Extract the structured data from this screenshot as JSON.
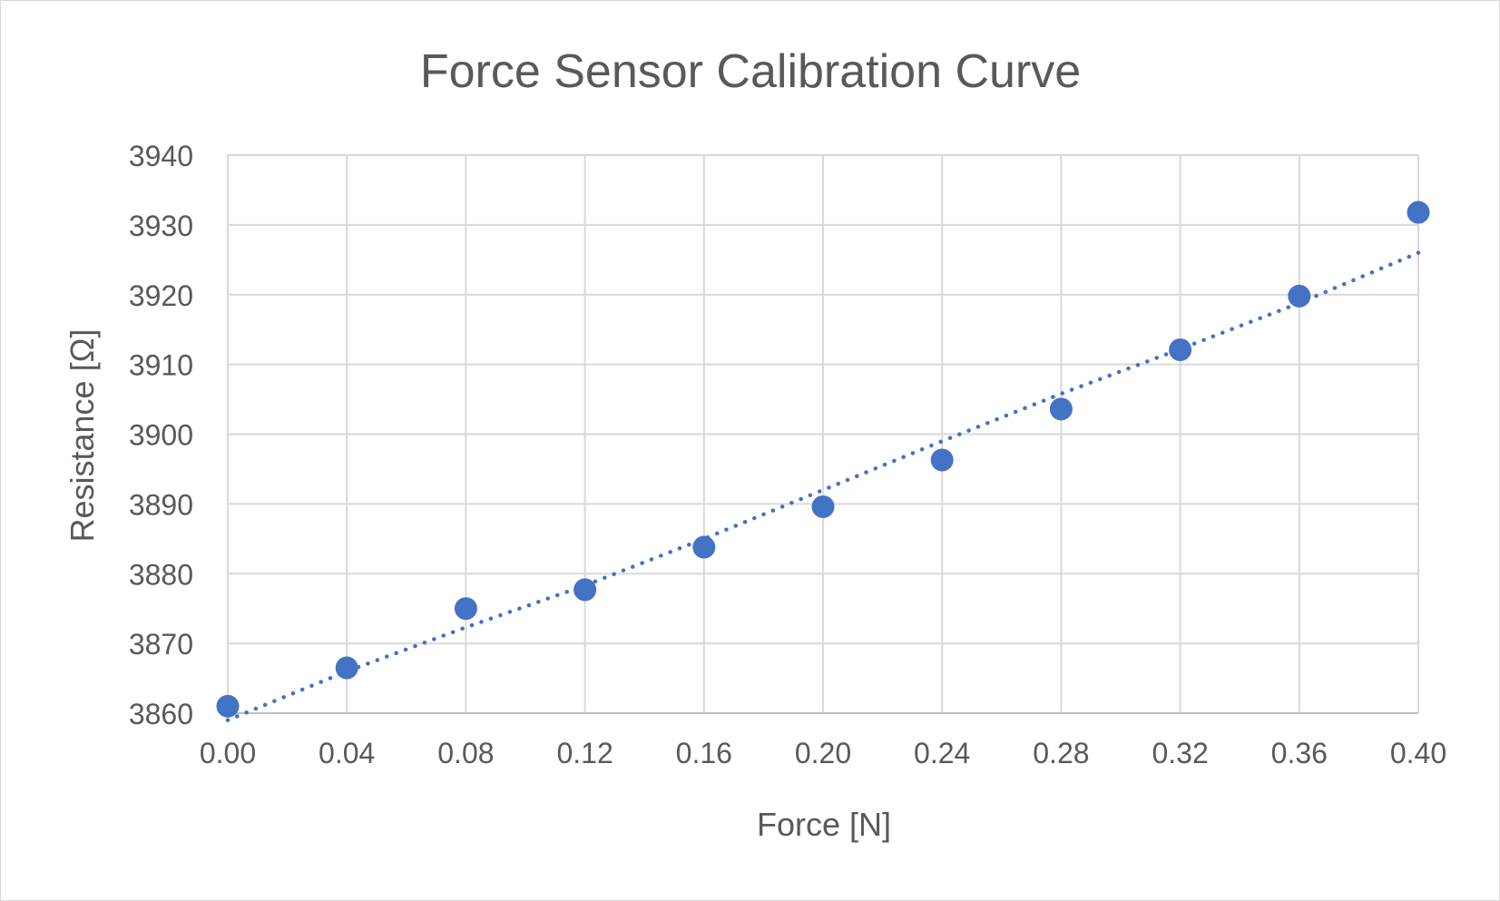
{
  "chart_data": {
    "type": "scatter",
    "title": "Force Sensor Calibration Curve",
    "xlabel": "Force [N]",
    "ylabel": "Resistance [Ω]",
    "xlim": [
      0.0,
      0.4
    ],
    "ylim": [
      3860,
      3940
    ],
    "x_ticks": [
      "0.00",
      "0.04",
      "0.08",
      "0.12",
      "0.16",
      "0.20",
      "0.24",
      "0.28",
      "0.32",
      "0.36",
      "0.40"
    ],
    "y_ticks": [
      "3860",
      "3870",
      "3880",
      "3890",
      "3900",
      "3910",
      "3920",
      "3930",
      "3940"
    ],
    "grid": true,
    "legend": "none",
    "series": [
      {
        "color": "#4472c4",
        "points": [
          {
            "x": 0.0,
            "y": 3861.0
          },
          {
            "x": 0.04,
            "y": 3866.5
          },
          {
            "x": 0.08,
            "y": 3875.0
          },
          {
            "x": 0.12,
            "y": 3877.7
          },
          {
            "x": 0.16,
            "y": 3883.8
          },
          {
            "x": 0.2,
            "y": 3889.6
          },
          {
            "x": 0.24,
            "y": 3896.3
          },
          {
            "x": 0.28,
            "y": 3903.6
          },
          {
            "x": 0.32,
            "y": 3912.1
          },
          {
            "x": 0.36,
            "y": 3919.8
          },
          {
            "x": 0.4,
            "y": 3931.8
          }
        ]
      }
    ],
    "trendline": {
      "style": "dotted",
      "color": "#4472c4",
      "type": "polynomial",
      "points": [
        {
          "x": 0.0,
          "y": 3859.0
        },
        {
          "x": 0.04,
          "y": 3866.0
        },
        {
          "x": 0.08,
          "y": 3872.3
        },
        {
          "x": 0.12,
          "y": 3878.3
        },
        {
          "x": 0.16,
          "y": 3885.0
        },
        {
          "x": 0.2,
          "y": 3892.0
        },
        {
          "x": 0.24,
          "y": 3899.0
        },
        {
          "x": 0.28,
          "y": 3905.8
        },
        {
          "x": 0.32,
          "y": 3912.2
        },
        {
          "x": 0.36,
          "y": 3918.8
        },
        {
          "x": 0.4,
          "y": 3926.0
        }
      ]
    }
  }
}
